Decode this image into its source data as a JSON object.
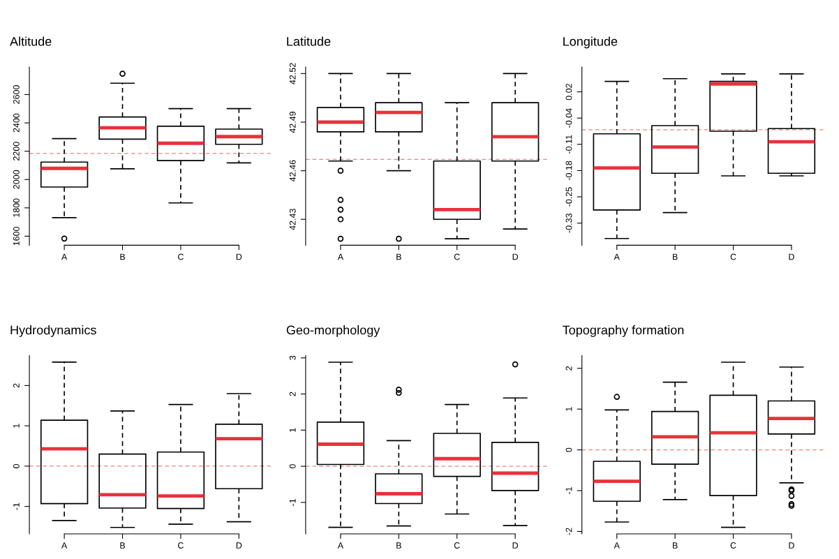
{
  "chart_data": [
    {
      "type": "box",
      "title": "Altitude",
      "categories": [
        "A",
        "B",
        "C",
        "D"
      ],
      "ylim": [
        1536,
        2794
      ],
      "yticks": [
        1600,
        1800,
        2000,
        2200,
        2400,
        2600
      ],
      "series": [
        {
          "color": "#000000",
          "boxes": [
            {
              "low": 1731,
              "q1": 1947,
              "median": 2079,
              "q3": 2123,
              "high": 2289,
              "outliers": [
                1583
              ]
            },
            {
              "low": 2076,
              "q1": 2285,
              "median": 2365,
              "q3": 2442,
              "high": 2680,
              "outliers": [
                2747
              ]
            },
            {
              "low": 1835,
              "q1": 2134,
              "median": 2256,
              "q3": 2376,
              "high": 2501
            },
            {
              "low": 2118,
              "q1": 2249,
              "median": 2303,
              "q3": 2356,
              "high": 2501
            }
          ]
        }
      ],
      "ref_lines": [
        {
          "axis": "y",
          "value": 2184,
          "color": "#f08080",
          "line_style": "dashed"
        }
      ]
    },
    {
      "type": "box",
      "title": "Latitude",
      "categories": [
        "A",
        "B",
        "C",
        "D"
      ],
      "ylim": [
        42.414,
        42.524
      ],
      "yticks": [
        {
          "value": 42.43,
          "label": "42.43"
        },
        {
          "value": 42.46,
          "label": "42.46"
        },
        {
          "value": 42.49,
          "label": "42.49"
        },
        {
          "value": 42.52,
          "label": "42.52"
        }
      ],
      "series": [
        {
          "color": "#000000",
          "boxes": [
            {
              "low": 42.466,
              "q1": 42.484,
              "median": 42.49,
              "q3": 42.499,
              "high": 42.52,
              "outliers": [
                42.46,
                42.442,
                42.436,
                42.43,
                42.418
              ]
            },
            {
              "low": 42.46,
              "q1": 42.484,
              "median": 42.496,
              "q3": 42.502,
              "high": 42.52,
              "outliers": [
                42.418
              ]
            },
            {
              "low": 42.418,
              "q1": 42.43,
              "median": 42.436,
              "q3": 42.466,
              "high": 42.502
            },
            {
              "low": 42.424,
              "q1": 42.466,
              "median": 42.481,
              "q3": 42.502,
              "high": 42.52
            }
          ]
        }
      ],
      "ref_lines": [
        {
          "axis": "y",
          "value": 42.467,
          "color": "#f08080",
          "line_style": "dashed"
        }
      ]
    },
    {
      "type": "box",
      "title": "Longitude",
      "categories": [
        "A",
        "B",
        "C",
        "D"
      ],
      "ylim": [
        -0.384,
        0.091
      ],
      "yticks": [
        {
          "value": -0.325,
          "label": "-0.33"
        },
        {
          "value": -0.255,
          "label": "-0.25"
        },
        {
          "value": -0.185,
          "label": "-0.18"
        },
        {
          "value": -0.115,
          "label": "-0.11"
        },
        {
          "value": -0.045,
          "label": "-0.04"
        },
        {
          "value": 0.025,
          "label": "0.02"
        }
      ],
      "series": [
        {
          "color": "#000000",
          "boxes": [
            {
              "low": -0.366,
              "q1": -0.29,
              "median": -0.178,
              "q3": -0.087,
              "high": 0.053
            },
            {
              "low": -0.297,
              "q1": -0.192,
              "median": -0.122,
              "q3": -0.065,
              "high": 0.06
            },
            {
              "low": -0.199,
              "q1": -0.08,
              "median": 0.046,
              "q3": 0.053,
              "high": 0.073
            },
            {
              "low": -0.199,
              "q1": -0.192,
              "median": -0.108,
              "q3": -0.073,
              "high": 0.073
            }
          ]
        }
      ],
      "ref_lines": [
        {
          "axis": "y",
          "value": -0.076,
          "color": "#f08080",
          "line_style": "dashed"
        }
      ]
    },
    {
      "type": "box",
      "title": "Hydrodynamics",
      "categories": [
        "A",
        "B",
        "C",
        "D"
      ],
      "ylim": [
        -1.68,
        2.74
      ],
      "yticks": [
        -1,
        0,
        1,
        2
      ],
      "series": [
        {
          "color": "#000000",
          "boxes": [
            {
              "low": -1.35,
              "q1": -0.93,
              "median": 0.43,
              "q3": 1.14,
              "high": 2.58
            },
            {
              "low": -1.52,
              "q1": -1.04,
              "median": -0.71,
              "q3": 0.3,
              "high": 1.37
            },
            {
              "low": -1.44,
              "q1": -1.05,
              "median": -0.74,
              "q3": 0.35,
              "high": 1.53
            },
            {
              "low": -1.38,
              "q1": -0.56,
              "median": 0.68,
              "q3": 1.04,
              "high": 1.8
            }
          ]
        }
      ],
      "ref_lines": [
        {
          "axis": "y",
          "value": 0,
          "color": "#f08080",
          "line_style": "dashed"
        }
      ]
    },
    {
      "type": "box",
      "title": "Geo-morphology",
      "categories": [
        "A",
        "B",
        "C",
        "D"
      ],
      "ylim": [
        -1.87,
        3.06
      ],
      "yticks": [
        -1,
        0,
        1,
        2,
        3
      ],
      "series": [
        {
          "color": "#000000",
          "boxes": [
            {
              "low": -1.69,
              "q1": 0.05,
              "median": 0.61,
              "q3": 1.22,
              "high": 2.88
            },
            {
              "low": -1.65,
              "q1": -1.03,
              "median": -0.76,
              "q3": -0.21,
              "high": 0.71,
              "outliers": [
                2.12,
                2.03
              ]
            },
            {
              "low": -1.32,
              "q1": -0.28,
              "median": 0.21,
              "q3": 0.91,
              "high": 1.71
            },
            {
              "low": -1.64,
              "q1": -0.67,
              "median": -0.19,
              "q3": 0.66,
              "high": 1.89,
              "outliers": [
                2.82
              ]
            }
          ]
        }
      ],
      "ref_lines": [
        {
          "axis": "y",
          "value": 0,
          "color": "#f08080",
          "line_style": "dashed"
        }
      ]
    },
    {
      "type": "box",
      "title": "Topography formation",
      "categories": [
        "A",
        "B",
        "C",
        "D"
      ],
      "ylim": [
        -2.06,
        2.31
      ],
      "yticks": [
        -2,
        -1,
        0,
        1,
        2
      ],
      "series": [
        {
          "color": "#000000",
          "boxes": [
            {
              "low": -1.77,
              "q1": -1.26,
              "median": -0.77,
              "q3": -0.28,
              "high": 0.98,
              "outliers": [
                1.3
              ]
            },
            {
              "low": -1.22,
              "q1": -0.35,
              "median": 0.32,
              "q3": 0.94,
              "high": 1.66
            },
            {
              "low": -1.9,
              "q1": -1.12,
              "median": 0.42,
              "q3": 1.34,
              "high": 2.15
            },
            {
              "low": -0.81,
              "q1": 0.39,
              "median": 0.77,
              "q3": 1.2,
              "high": 2.03,
              "outliers": [
                -0.97,
                -1.0,
                -1.13,
                -1.33,
                -1.37
              ]
            }
          ]
        }
      ],
      "ref_lines": [
        {
          "axis": "y",
          "value": 0,
          "color": "#f08080",
          "line_style": "dashed"
        }
      ]
    }
  ]
}
